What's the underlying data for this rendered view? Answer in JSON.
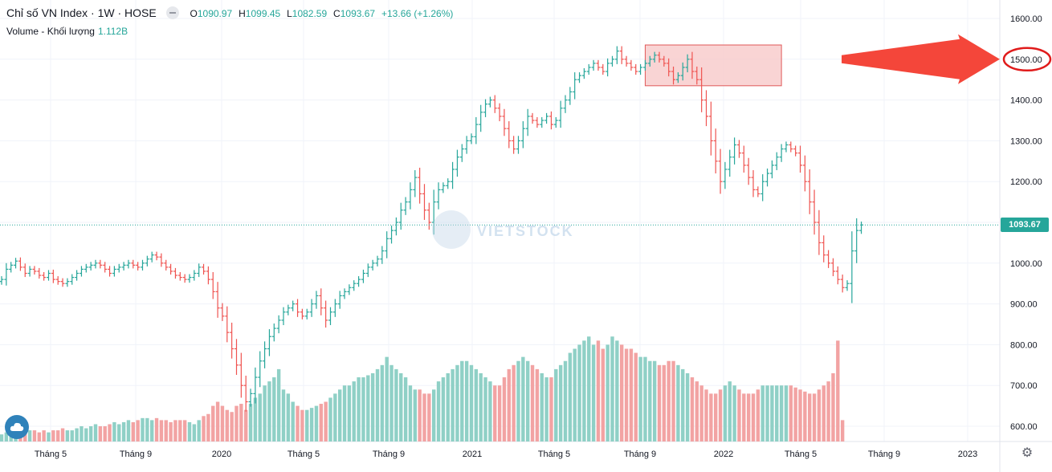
{
  "legend": {
    "symbol": "Chỉ số VN Index · 1W · HOSE",
    "open_label": "O",
    "open": "1090.97",
    "high_label": "H",
    "high": "1099.45",
    "low_label": "L",
    "low": "1082.59",
    "close_label": "C",
    "close": "1093.67",
    "change": "+13.66 (+1.26%)"
  },
  "volume_legend": {
    "label": "Volume - Khối lượng",
    "value": "1.112B"
  },
  "last_price_label": "1093.67",
  "watermark_text": "VIETSTOCK",
  "icons": {
    "settings": "gear-icon",
    "logo": "cloud-icon"
  },
  "colors": {
    "up": "#26a69a",
    "down": "#ef5350",
    "up_volume": "#8fd0c6",
    "down_volume": "#f2a3a3",
    "highlight_box": "#f7c9c9",
    "arrow": "#f4463a"
  },
  "chart_data": {
    "type": "ohlc",
    "interval": "1W",
    "y_ticks": [
      "600.00",
      "700.00",
      "800.00",
      "900.00",
      "1000.00",
      "1100.00",
      "1200.00",
      "1300.00",
      "1400.00",
      "1500.00",
      "1600.00"
    ],
    "x_ticks": [
      "Tháng 5",
      "Tháng 9",
      "2020",
      "Tháng 5",
      "Tháng 9",
      "2021",
      "Tháng 5",
      "Tháng 9",
      "2022",
      "Tháng 5",
      "Tháng 9",
      "2023"
    ],
    "ylim": [
      575,
      1625
    ],
    "last_price": 1093.67,
    "highlight_price": "1500.00",
    "highlight_range": {
      "from_week": 137,
      "to_week": 166,
      "low": 1435,
      "high": 1535
    },
    "series_close": [
      960,
      985,
      995,
      1005,
      990,
      975,
      985,
      980,
      970,
      965,
      975,
      960,
      955,
      950,
      955,
      965,
      975,
      985,
      990,
      995,
      1000,
      995,
      985,
      975,
      985,
      990,
      995,
      1000,
      995,
      990,
      1000,
      1010,
      1020,
      1015,
      1000,
      990,
      980,
      970,
      965,
      960,
      965,
      975,
      990,
      980,
      960,
      930,
      890,
      870,
      830,
      790,
      750,
      700,
      660,
      680,
      720,
      760,
      790,
      820,
      840,
      860,
      880,
      890,
      900,
      880,
      870,
      880,
      900,
      920,
      890,
      860,
      880,
      900,
      920,
      930,
      940,
      950,
      960,
      975,
      990,
      1000,
      1010,
      1030,
      1060,
      1080,
      1100,
      1130,
      1150,
      1180,
      1210,
      1170,
      1130,
      1100,
      1150,
      1180,
      1190,
      1200,
      1230,
      1260,
      1280,
      1300,
      1310,
      1340,
      1370,
      1390,
      1400,
      1380,
      1360,
      1330,
      1300,
      1280,
      1300,
      1330,
      1360,
      1350,
      1340,
      1350,
      1360,
      1340,
      1350,
      1380,
      1400,
      1420,
      1450,
      1460,
      1470,
      1480,
      1490,
      1480,
      1470,
      1490,
      1500,
      1520,
      1500,
      1490,
      1480,
      1470,
      1480,
      1490,
      1500,
      1510,
      1500,
      1490,
      1470,
      1450,
      1460,
      1480,
      1500,
      1470,
      1450,
      1400,
      1360,
      1300,
      1250,
      1200,
      1230,
      1260,
      1290,
      1270,
      1240,
      1210,
      1180,
      1170,
      1200,
      1220,
      1240,
      1260,
      1280,
      1290,
      1280,
      1270,
      1240,
      1200,
      1150,
      1100,
      1050,
      1020,
      1000,
      980,
      960,
      940,
      950,
      1030,
      1080,
      1093.67
    ],
    "series_volume": [
      580,
      585,
      590,
      585,
      590,
      585,
      590,
      590,
      585,
      590,
      585,
      590,
      590,
      595,
      590,
      590,
      595,
      600,
      595,
      600,
      605,
      600,
      600,
      605,
      610,
      605,
      610,
      615,
      610,
      615,
      620,
      620,
      615,
      620,
      615,
      615,
      610,
      615,
      615,
      615,
      610,
      605,
      615,
      625,
      630,
      650,
      660,
      650,
      640,
      635,
      650,
      655,
      640,
      655,
      670,
      680,
      700,
      710,
      720,
      740,
      690,
      680,
      660,
      650,
      640,
      640,
      645,
      650,
      655,
      660,
      670,
      680,
      690,
      700,
      700,
      710,
      720,
      720,
      725,
      730,
      740,
      750,
      770,
      750,
      740,
      730,
      720,
      700,
      690,
      690,
      680,
      680,
      690,
      710,
      720,
      730,
      740,
      750,
      760,
      760,
      750,
      740,
      730,
      720,
      710,
      700,
      700,
      720,
      740,
      750,
      760,
      770,
      760,
      750,
      740,
      730,
      720,
      720,
      740,
      750,
      760,
      780,
      790,
      800,
      810,
      820,
      800,
      810,
      790,
      800,
      820,
      810,
      800,
      790,
      790,
      780,
      770,
      770,
      760,
      760,
      750,
      750,
      760,
      760,
      750,
      740,
      730,
      720,
      710,
      700,
      690,
      680,
      680,
      690,
      700,
      710,
      700,
      690,
      680,
      680,
      680,
      690,
      700,
      700,
      700,
      700,
      700,
      700,
      700,
      695,
      690,
      685,
      680,
      680,
      690,
      700,
      710,
      730,
      810,
      615
    ]
  }
}
